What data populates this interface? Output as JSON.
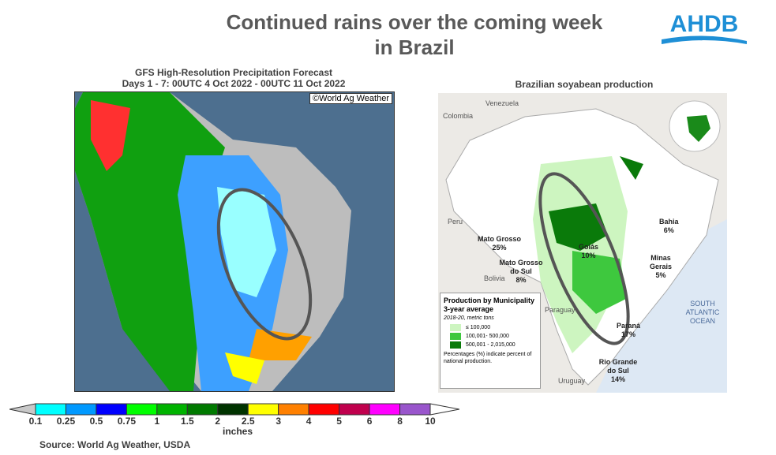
{
  "title_line1": "Continued rains over the coming week",
  "title_line2": "in Brazil",
  "logo_text": "AHDB",
  "left_map": {
    "title_line1": "GFS High-Resolution Precipitation Forecast",
    "title_line2": "Days 1 - 7: 00UTC 4 Oct 2022 - 00UTC 11 Oct 2022",
    "watermark": "©World Ag Weather"
  },
  "colorbar": {
    "unit": "inches",
    "ticks": [
      "0.1",
      "0.25",
      "0.5",
      "0.75",
      "1",
      "1.5",
      "2",
      "2.5",
      "3",
      "4",
      "5",
      "6",
      "8",
      "10"
    ],
    "colors": [
      "#00ffff",
      "#0099ff",
      "#0000ff",
      "#00ff00",
      "#00b300",
      "#007a00",
      "#003300",
      "#ffff00",
      "#ff8000",
      "#ff0000",
      "#c0004d",
      "#ff00ff",
      "#9955cc"
    ],
    "below_color": "#c8c8c8"
  },
  "right_map": {
    "title": "Brazilian soyabean production",
    "labels": {
      "venezuela": "Venezuela",
      "colombia": "Colombia",
      "peru": "Peru",
      "bolivia": "Bolivia",
      "paraguay": "Paraguay",
      "uruguay": "Uruguay",
      "ocean": "SOUTH ATLANTIC OCEAN"
    },
    "states": [
      {
        "name": "Mato Grosso",
        "pct": "25%"
      },
      {
        "name": "Goiás",
        "pct": "10%"
      },
      {
        "name": "Bahia",
        "pct": "6%"
      },
      {
        "name": "Mato Grosso do Sul",
        "pct": "8%"
      },
      {
        "name": "Minas Gerais",
        "pct": "5%"
      },
      {
        "name": "Paraná",
        "pct": "17%"
      },
      {
        "name": "Rio Grande do Sul",
        "pct": "14%"
      }
    ],
    "legend": {
      "title": "Production by Municipality 3-year average",
      "subtitle": "2018-20, metric tons",
      "items": [
        {
          "label": "≤ 100,000",
          "color": "#cdf5c0"
        },
        {
          "label": "100,001- 500,000",
          "color": "#3ec83e"
        },
        {
          "label": "500,001 - 2,015,000",
          "color": "#0a7a0a"
        }
      ],
      "note": "Percentages (%) indicate percent of national production."
    }
  },
  "source": "Source: World Ag Weather, USDA"
}
